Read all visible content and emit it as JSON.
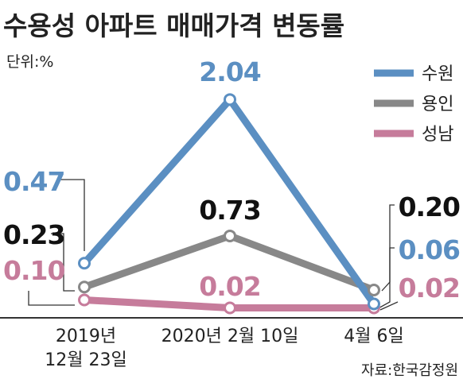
{
  "chart_data": {
    "type": "line",
    "title": "수용성 아파트 매매가격 변동률",
    "unit_label": "단위:%",
    "source": "자료:한국감정원",
    "categories": [
      [
        "2019년",
        "12월 23일"
      ],
      [
        "2020년 2월 10일"
      ],
      [
        "4월 6일"
      ]
    ],
    "series": [
      {
        "name": "수원",
        "color": "#5b8fc2",
        "values": [
          0.47,
          2.04,
          0.06
        ],
        "labels": [
          "0.47",
          "2.04",
          "0.06"
        ],
        "label_color": "#5b8fc2"
      },
      {
        "name": "용인",
        "color": "#888888",
        "values": [
          0.23,
          0.73,
          0.2
        ],
        "labels": [
          "0.23",
          "0.73",
          "0.20"
        ],
        "label_color": "#111111"
      },
      {
        "name": "성남",
        "color": "#c67c9b",
        "values": [
          0.1,
          0.02,
          0.02
        ],
        "labels": [
          "0.10",
          "0.02",
          "0.02"
        ],
        "label_color": "#c67c9b"
      }
    ],
    "legend_position": "top-right",
    "grid": false
  }
}
